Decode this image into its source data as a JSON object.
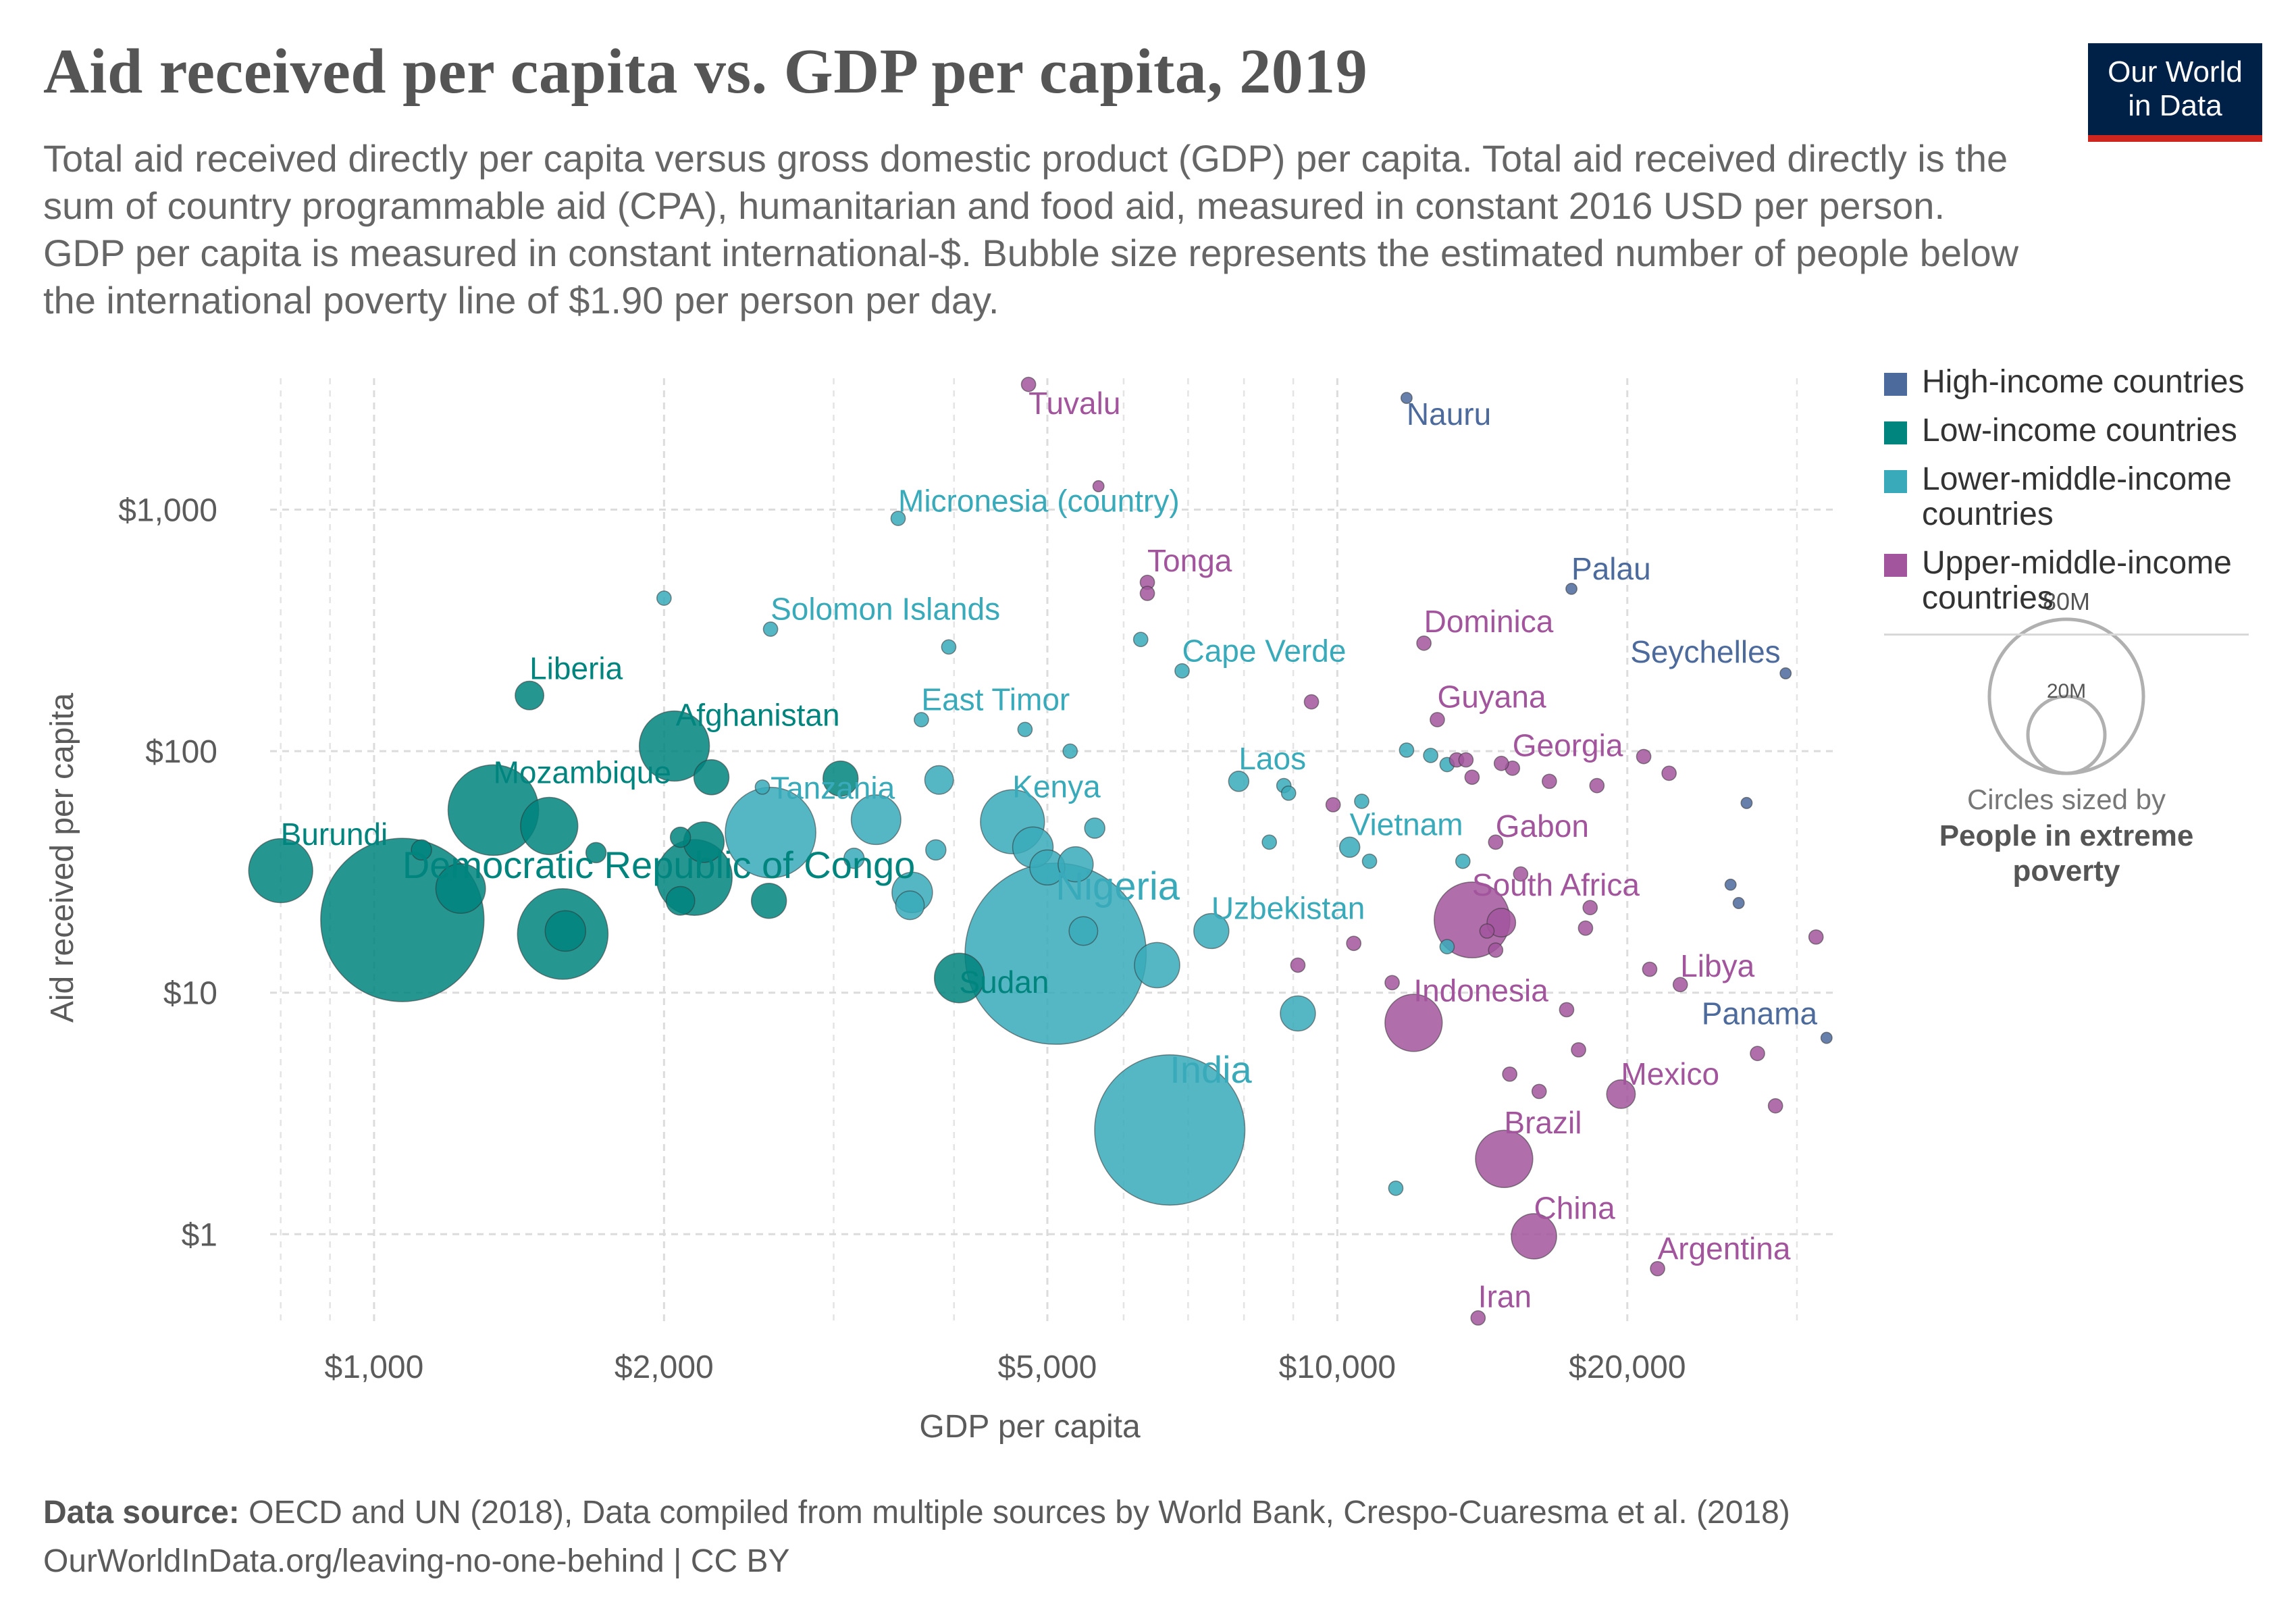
{
  "header": {
    "title": "Aid received per capita vs. GDP per capita, 2019",
    "subtitle": "Total aid received directly per capita versus gross domestic product (GDP) per capita. Total aid received directly is the sum of country programmable aid (CPA), humanitarian and food aid, measured in constant 2016 USD per person. GDP per capita is measured in constant international-$. Bubble size represents the estimated number of people below the international poverty line of $1.90 per person per day."
  },
  "logo": {
    "line1": "Our World",
    "line2": "in Data"
  },
  "colors": {
    "high": "#4c6a9c",
    "low": "#00847e",
    "lower_middle": "#38aaba",
    "upper_middle": "#a2559c"
  },
  "legend": {
    "items": [
      {
        "label": "High-income countries",
        "group": "high"
      },
      {
        "label": "Low-income countries",
        "group": "low"
      },
      {
        "label": "Lower-middle-income countries",
        "group": "lower_middle"
      },
      {
        "label": "Upper-middle-income countries",
        "group": "upper_middle"
      }
    ],
    "size_legend": {
      "large_label": "80M",
      "small_label": "20M",
      "large_value_millions": 80,
      "small_value_millions": 20,
      "caption_line1": "Circles sized by",
      "caption_line2": "People in extreme poverty"
    }
  },
  "footer": {
    "source_label": "Data source:",
    "source_text": "OECD and UN (2018), Data compiled from multiple sources by World Bank, Crespo-Cuaresma et al. (2018)",
    "url_line": "OurWorldInData.org/leaving-no-one-behind | CC BY"
  },
  "chart_data": {
    "type": "scatter",
    "xlabel": "GDP per capita",
    "ylabel": "Aid received per capita",
    "xscale": "log",
    "yscale": "log",
    "xlim": [
      780,
      33000
    ],
    "ylim": [
      0.42,
      3500
    ],
    "xticks": [
      {
        "value": 1000,
        "label": "$1,000"
      },
      {
        "value": 2000,
        "label": "$2,000"
      },
      {
        "value": 5000,
        "label": "$5,000"
      },
      {
        "value": 10000,
        "label": "$10,000"
      },
      {
        "value": 20000,
        "label": "$20,000"
      }
    ],
    "yticks": [
      {
        "value": 1,
        "label": "$1"
      },
      {
        "value": 10,
        "label": "$10"
      },
      {
        "value": 100,
        "label": "$100"
      },
      {
        "value": 1000,
        "label": "$1,000"
      }
    ],
    "grid": true,
    "legend_position": "right",
    "points": [
      {
        "name": "Burundi",
        "x": 800,
        "y": 32,
        "pop": 10,
        "group": "low",
        "label": "Burundi"
      },
      {
        "name": "Democratic Republic of Congo",
        "x": 1070,
        "y": 20,
        "pop": 65,
        "group": "low",
        "label": "Democratic Republic of Congo"
      },
      {
        "name": "Liberia",
        "x": 1450,
        "y": 170,
        "pop": 2,
        "group": "low",
        "label": "Liberia"
      },
      {
        "name": "Mozambique",
        "x": 1330,
        "y": 57,
        "pop": 20,
        "group": "low",
        "label": "Mozambique"
      },
      {
        "name": "Afghanistan",
        "x": 2050,
        "y": 105,
        "pop": 12,
        "group": "low",
        "label": "Afghanistan"
      },
      {
        "name": "Sudan",
        "x": 4050,
        "y": 11.5,
        "pop": 6,
        "group": "low",
        "label": "Sudan"
      },
      {
        "name": "Tanzania",
        "x": 2580,
        "y": 46,
        "pop": 20,
        "group": "lower_middle",
        "label": "Tanzania"
      },
      {
        "name": "Kenya",
        "x": 4600,
        "y": 51,
        "pop": 10,
        "group": "lower_middle",
        "label": "Kenya"
      },
      {
        "name": "Nigeria",
        "x": 5100,
        "y": 14.5,
        "pop": 80,
        "group": "lower_middle",
        "label": "Nigeria"
      },
      {
        "name": "India",
        "x": 6700,
        "y": 2.7,
        "pop": 55,
        "group": "lower_middle",
        "label": "India"
      },
      {
        "name": "Uzbekistan",
        "x": 7400,
        "y": 18,
        "pop": 3,
        "group": "lower_middle",
        "label": "Uzbekistan"
      },
      {
        "name": "Micronesia (country)",
        "x": 3500,
        "y": 920,
        "pop": 0.5,
        "group": "lower_middle",
        "label": "Micronesia (country)"
      },
      {
        "name": "Solomon Islands",
        "x": 2580,
        "y": 320,
        "pop": 0.5,
        "group": "lower_middle",
        "label": "Solomon Islands"
      },
      {
        "name": "East Timor",
        "x": 3700,
        "y": 135,
        "pop": 0.5,
        "group": "lower_middle",
        "label": "East Timor"
      },
      {
        "name": "Cape Verde",
        "x": 6900,
        "y": 215,
        "pop": 0.5,
        "group": "lower_middle",
        "label": "Cape Verde"
      },
      {
        "name": "Laos",
        "x": 7900,
        "y": 75,
        "pop": 1,
        "group": "lower_middle",
        "label": "Laos"
      },
      {
        "name": "Vietnam",
        "x": 10300,
        "y": 40,
        "pop": 1,
        "group": "lower_middle",
        "label": "Vietnam"
      },
      {
        "name": "Tuvalu",
        "x": 4780,
        "y": 3300,
        "pop": 0.5,
        "group": "upper_middle",
        "label": "Tuvalu"
      },
      {
        "name": "Tonga",
        "x": 6350,
        "y": 500,
        "pop": 0.5,
        "group": "upper_middle",
        "label": "Tonga"
      },
      {
        "name": "Dominica",
        "x": 12300,
        "y": 280,
        "pop": 0.5,
        "group": "upper_middle",
        "label": "Dominica"
      },
      {
        "name": "Guyana",
        "x": 12700,
        "y": 135,
        "pop": 0.5,
        "group": "upper_middle",
        "label": "Guyana"
      },
      {
        "name": "Georgia",
        "x": 15200,
        "y": 85,
        "pop": 0.5,
        "group": "upper_middle",
        "label": "Georgia"
      },
      {
        "name": "Gabon",
        "x": 14600,
        "y": 42,
        "pop": 0.5,
        "group": "upper_middle",
        "label": "Gabon"
      },
      {
        "name": "South Africa",
        "x": 13800,
        "y": 20,
        "pop": 14,
        "group": "upper_middle",
        "label": "South Africa"
      },
      {
        "name": "Indonesia",
        "x": 12000,
        "y": 7.5,
        "pop": 8,
        "group": "upper_middle",
        "label": "Indonesia"
      },
      {
        "name": "Libya",
        "x": 22700,
        "y": 10.8,
        "pop": 0.5,
        "group": "upper_middle",
        "label": "Libya"
      },
      {
        "name": "Mexico",
        "x": 19700,
        "y": 3.8,
        "pop": 2,
        "group": "upper_middle",
        "label": "Mexico"
      },
      {
        "name": "Brazil",
        "x": 14900,
        "y": 2.05,
        "pop": 8,
        "group": "upper_middle",
        "label": "Brazil"
      },
      {
        "name": "China",
        "x": 16000,
        "y": 0.98,
        "pop": 5,
        "group": "upper_middle",
        "label": "China"
      },
      {
        "name": "Argentina",
        "x": 21500,
        "y": 0.72,
        "pop": 0.5,
        "group": "upper_middle",
        "label": "Argentina"
      },
      {
        "name": "Iran",
        "x": 14000,
        "y": 0.45,
        "pop": 0.5,
        "group": "upper_middle",
        "label": "Iran"
      },
      {
        "name": "Nauru",
        "x": 11800,
        "y": 2900,
        "pop": 0.3,
        "group": "high",
        "label": "Nauru"
      },
      {
        "name": "Palau",
        "x": 17500,
        "y": 470,
        "pop": 0.3,
        "group": "high",
        "label": "Palau"
      },
      {
        "name": "Seychelles",
        "x": 29200,
        "y": 210,
        "pop": 0.3,
        "group": "high",
        "label": "Seychelles"
      },
      {
        "name": "Panama",
        "x": 32200,
        "y": 6.5,
        "pop": 0.3,
        "group": "high",
        "label": "Panama"
      },
      {
        "name": "",
        "x": 1120,
        "y": 39,
        "pop": 1,
        "group": "low"
      },
      {
        "name": "",
        "x": 1230,
        "y": 27,
        "pop": 6,
        "group": "low"
      },
      {
        "name": "",
        "x": 1520,
        "y": 49,
        "pop": 8,
        "group": "low"
      },
      {
        "name": "",
        "x": 1570,
        "y": 17.5,
        "pop": 20,
        "group": "low"
      },
      {
        "name": "",
        "x": 1580,
        "y": 18,
        "pop": 4,
        "group": "low"
      },
      {
        "name": "",
        "x": 1700,
        "y": 38,
        "pop": 1,
        "group": "low"
      },
      {
        "name": "",
        "x": 2080,
        "y": 24,
        "pop": 2,
        "group": "low"
      },
      {
        "name": "",
        "x": 2080,
        "y": 44,
        "pop": 1,
        "group": "low"
      },
      {
        "name": "",
        "x": 2150,
        "y": 30,
        "pop": 14,
        "group": "low"
      },
      {
        "name": "",
        "x": 2200,
        "y": 42,
        "pop": 4,
        "group": "low"
      },
      {
        "name": "",
        "x": 2240,
        "y": 78,
        "pop": 3,
        "group": "low"
      },
      {
        "name": "",
        "x": 2570,
        "y": 24,
        "pop": 3,
        "group": "low"
      },
      {
        "name": "",
        "x": 3050,
        "y": 77,
        "pop": 3,
        "group": "low"
      },
      {
        "name": "",
        "x": 2000,
        "y": 430,
        "pop": 0.5,
        "group": "lower_middle"
      },
      {
        "name": "",
        "x": 2530,
        "y": 71,
        "pop": 0.5,
        "group": "lower_middle"
      },
      {
        "name": "",
        "x": 3150,
        "y": 36,
        "pop": 1,
        "group": "lower_middle"
      },
      {
        "name": "",
        "x": 3320,
        "y": 52,
        "pop": 6,
        "group": "lower_middle"
      },
      {
        "name": "",
        "x": 3620,
        "y": 26,
        "pop": 4,
        "group": "lower_middle"
      },
      {
        "name": "",
        "x": 3600,
        "y": 23,
        "pop": 2,
        "group": "lower_middle"
      },
      {
        "name": "",
        "x": 3860,
        "y": 76,
        "pop": 2,
        "group": "lower_middle"
      },
      {
        "name": "",
        "x": 3830,
        "y": 39,
        "pop": 1,
        "group": "lower_middle"
      },
      {
        "name": "",
        "x": 3950,
        "y": 270,
        "pop": 0.5,
        "group": "lower_middle"
      },
      {
        "name": "",
        "x": 4740,
        "y": 123,
        "pop": 0.5,
        "group": "lower_middle"
      },
      {
        "name": "",
        "x": 4830,
        "y": 40,
        "pop": 4,
        "group": "lower_middle"
      },
      {
        "name": "",
        "x": 5000,
        "y": 33,
        "pop": 3,
        "group": "lower_middle"
      },
      {
        "name": "",
        "x": 5280,
        "y": 100,
        "pop": 0.5,
        "group": "lower_middle"
      },
      {
        "name": "",
        "x": 5350,
        "y": 34,
        "pop": 3,
        "group": "lower_middle"
      },
      {
        "name": "",
        "x": 5450,
        "y": 18,
        "pop": 2,
        "group": "lower_middle"
      },
      {
        "name": "",
        "x": 5600,
        "y": 48,
        "pop": 1,
        "group": "lower_middle"
      },
      {
        "name": "",
        "x": 6500,
        "y": 13,
        "pop": 5,
        "group": "lower_middle"
      },
      {
        "name": "",
        "x": 6250,
        "y": 290,
        "pop": 0.5,
        "group": "lower_middle"
      },
      {
        "name": "",
        "x": 8500,
        "y": 42,
        "pop": 0.5,
        "group": "lower_middle"
      },
      {
        "name": "",
        "x": 8800,
        "y": 72,
        "pop": 0.5,
        "group": "lower_middle"
      },
      {
        "name": "",
        "x": 8900,
        "y": 67,
        "pop": 0.5,
        "group": "lower_middle"
      },
      {
        "name": "",
        "x": 9100,
        "y": 8.2,
        "pop": 3,
        "group": "lower_middle"
      },
      {
        "name": "",
        "x": 11500,
        "y": 1.55,
        "pop": 0.5,
        "group": "lower_middle"
      },
      {
        "name": "",
        "x": 11800,
        "y": 101,
        "pop": 0.5,
        "group": "lower_middle"
      },
      {
        "name": "",
        "x": 12500,
        "y": 96,
        "pop": 0.5,
        "group": "lower_middle"
      },
      {
        "name": "",
        "x": 13000,
        "y": 88,
        "pop": 0.5,
        "group": "lower_middle"
      },
      {
        "name": "",
        "x": 13500,
        "y": 35,
        "pop": 0.5,
        "group": "lower_middle"
      },
      {
        "name": "",
        "x": 13000,
        "y": 15.5,
        "pop": 0.5,
        "group": "lower_middle"
      },
      {
        "name": "",
        "x": 10600,
        "y": 62,
        "pop": 0.5,
        "group": "lower_middle"
      },
      {
        "name": "",
        "x": 10800,
        "y": 35,
        "pop": 0.5,
        "group": "lower_middle"
      },
      {
        "name": "",
        "x": 6350,
        "y": 450,
        "pop": 0.5,
        "group": "upper_middle"
      },
      {
        "name": "",
        "x": 5650,
        "y": 1250,
        "pop": 0.3,
        "group": "upper_middle"
      },
      {
        "name": "",
        "x": 9400,
        "y": 160,
        "pop": 0.5,
        "group": "upper_middle"
      },
      {
        "name": "",
        "x": 9900,
        "y": 60,
        "pop": 0.5,
        "group": "upper_middle"
      },
      {
        "name": "",
        "x": 10400,
        "y": 16,
        "pop": 0.5,
        "group": "upper_middle"
      },
      {
        "name": "",
        "x": 11400,
        "y": 11,
        "pop": 0.5,
        "group": "upper_middle"
      },
      {
        "name": "",
        "x": 9100,
        "y": 13,
        "pop": 0.5,
        "group": "upper_middle"
      },
      {
        "name": "",
        "x": 13300,
        "y": 92,
        "pop": 0.5,
        "group": "upper_middle"
      },
      {
        "name": "",
        "x": 14300,
        "y": 18,
        "pop": 0.5,
        "group": "upper_middle"
      },
      {
        "name": "",
        "x": 14800,
        "y": 19.5,
        "pop": 2,
        "group": "upper_middle"
      },
      {
        "name": "",
        "x": 14600,
        "y": 15,
        "pop": 0.5,
        "group": "upper_middle"
      },
      {
        "name": "",
        "x": 15100,
        "y": 4.6,
        "pop": 0.5,
        "group": "upper_middle"
      },
      {
        "name": "",
        "x": 15500,
        "y": 31,
        "pop": 0.5,
        "group": "upper_middle"
      },
      {
        "name": "",
        "x": 16200,
        "y": 3.9,
        "pop": 0.5,
        "group": "upper_middle"
      },
      {
        "name": "",
        "x": 16600,
        "y": 75,
        "pop": 0.5,
        "group": "upper_middle"
      },
      {
        "name": "",
        "x": 17300,
        "y": 8.5,
        "pop": 0.5,
        "group": "upper_middle"
      },
      {
        "name": "",
        "x": 17800,
        "y": 5.8,
        "pop": 0.5,
        "group": "upper_middle"
      },
      {
        "name": "",
        "x": 18100,
        "y": 18.5,
        "pop": 0.5,
        "group": "upper_middle"
      },
      {
        "name": "",
        "x": 18300,
        "y": 22.5,
        "pop": 0.5,
        "group": "upper_middle"
      },
      {
        "name": "",
        "x": 18600,
        "y": 72,
        "pop": 0.5,
        "group": "upper_middle"
      },
      {
        "name": "",
        "x": 20800,
        "y": 95,
        "pop": 0.5,
        "group": "upper_middle"
      },
      {
        "name": "",
        "x": 21100,
        "y": 12.5,
        "pop": 0.5,
        "group": "upper_middle"
      },
      {
        "name": "",
        "x": 22100,
        "y": 81,
        "pop": 0.5,
        "group": "upper_middle"
      },
      {
        "name": "",
        "x": 13600,
        "y": 92,
        "pop": 0.5,
        "group": "upper_middle"
      },
      {
        "name": "",
        "x": 13800,
        "y": 78,
        "pop": 0.5,
        "group": "upper_middle"
      },
      {
        "name": "",
        "x": 14800,
        "y": 89,
        "pop": 0.5,
        "group": "upper_middle"
      },
      {
        "name": "",
        "x": 27300,
        "y": 5.6,
        "pop": 0.5,
        "group": "upper_middle"
      },
      {
        "name": "",
        "x": 28500,
        "y": 3.4,
        "pop": 0.5,
        "group": "upper_middle"
      },
      {
        "name": "",
        "x": 31400,
        "y": 17,
        "pop": 0.5,
        "group": "upper_middle"
      },
      {
        "name": "",
        "x": 25600,
        "y": 28,
        "pop": 0.3,
        "group": "high"
      },
      {
        "name": "",
        "x": 26100,
        "y": 23.5,
        "pop": 0.3,
        "group": "high"
      },
      {
        "name": "",
        "x": 26600,
        "y": 61,
        "pop": 0.3,
        "group": "high"
      }
    ]
  }
}
